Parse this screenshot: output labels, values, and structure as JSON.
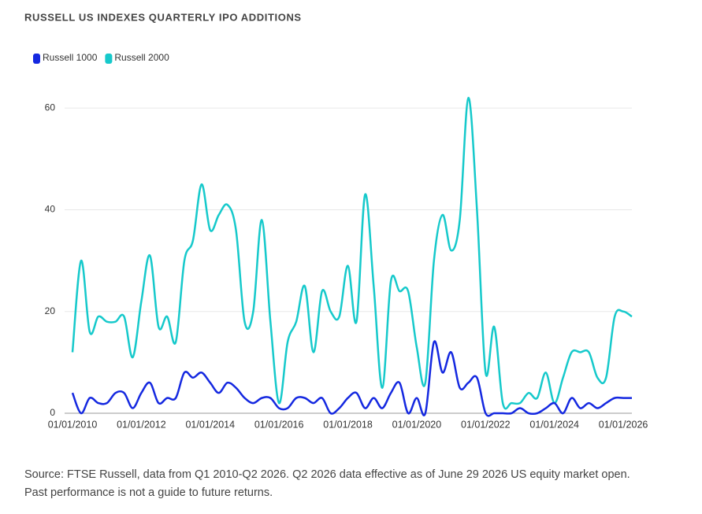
{
  "chart_data": {
    "type": "line",
    "title": "RUSSELL US INDEXES QUARTERLY IPO ADDITIONS",
    "categories": [
      "01/01/2010",
      null,
      null,
      null,
      null,
      null,
      null,
      null,
      "01/01/2012",
      null,
      null,
      null,
      null,
      null,
      null,
      null,
      "01/01/2014",
      null,
      null,
      null,
      null,
      null,
      null,
      null,
      "01/01/2016",
      null,
      null,
      null,
      null,
      null,
      null,
      null,
      "01/01/2018",
      null,
      null,
      null,
      null,
      null,
      null,
      null,
      "01/01/2020",
      null,
      null,
      null,
      null,
      null,
      null,
      null,
      "01/01/2022",
      null,
      null,
      null,
      null,
      null,
      null,
      null,
      "01/01/2024",
      null,
      null,
      null,
      null,
      null,
      null,
      null,
      "01/01/2026",
      null
    ],
    "series": [
      {
        "name": "Russell 1000",
        "color": "#1428e0",
        "values": [
          4,
          0,
          3,
          2,
          2,
          4,
          4,
          1,
          4,
          6,
          2,
          3,
          3,
          8,
          7,
          8,
          6,
          4,
          6,
          5,
          3,
          2,
          3,
          3,
          1,
          1,
          3,
          3,
          2,
          3,
          0,
          1,
          3,
          4,
          1,
          3,
          1,
          4,
          6,
          0,
          3,
          0,
          14,
          8,
          12,
          5,
          6,
          7,
          0,
          0,
          0,
          0,
          1,
          0,
          0,
          1,
          2,
          0,
          3,
          1,
          2,
          1,
          2,
          3,
          3,
          3
        ]
      },
      {
        "name": "Russell 2000",
        "color": "#16c9cb",
        "values": [
          12,
          30,
          16,
          19,
          18,
          18,
          19,
          11,
          22,
          31,
          17,
          19,
          14,
          30,
          34,
          45,
          36,
          39,
          41,
          36,
          18,
          20,
          38,
          18,
          2,
          14,
          18,
          25,
          12,
          24,
          20,
          19,
          29,
          18,
          43,
          25,
          5,
          26,
          24,
          24,
          13,
          6,
          30,
          39,
          32,
          38,
          62,
          40,
          8,
          17,
          2,
          2,
          2,
          4,
          3,
          8,
          2,
          7,
          12,
          12,
          12,
          7,
          7,
          19,
          20,
          19
        ]
      }
    ],
    "ylim": [
      0,
      65
    ],
    "yticks": [
      0,
      20,
      40,
      60
    ],
    "grid": true,
    "source": "Source: FTSE Russell, data from Q1 2010-Q2 2026. Q2 2026 data effective as of June 29 2026 US equity market open. Past performance is not a guide to future returns."
  }
}
